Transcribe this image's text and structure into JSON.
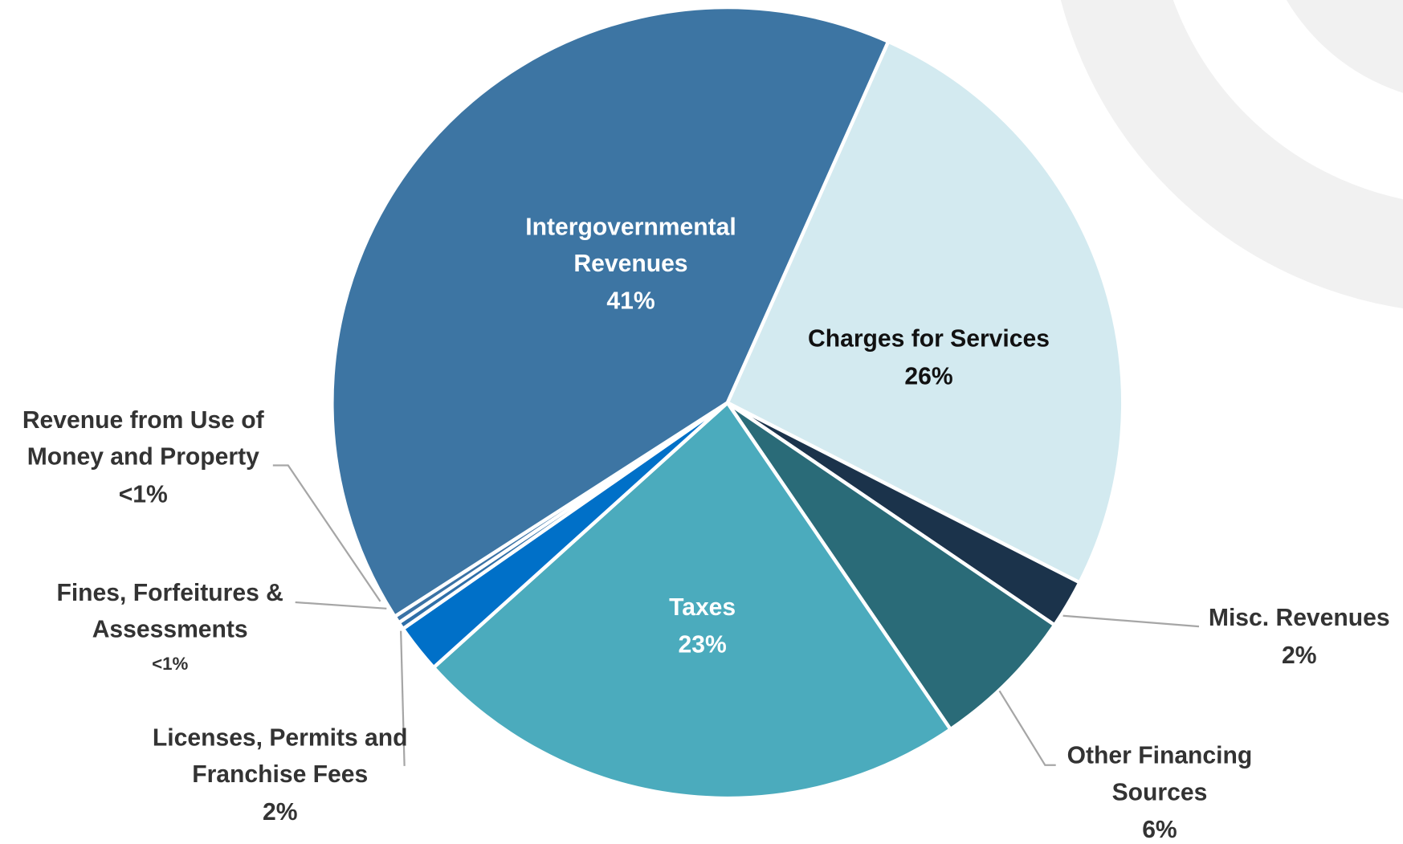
{
  "chart_data": {
    "type": "pie",
    "categories": [
      "Charges for Services",
      "Misc. Revenues",
      "Other Financing Sources",
      "Taxes",
      "Licenses, Permits and Franchise Fees",
      "Fines, Forfeitures & Assessments",
      "Revenue from Use of Money and Property",
      "Intergovernmental Revenues"
    ],
    "values": [
      26,
      2,
      6,
      23,
      2,
      0.3,
      0.3,
      41
    ],
    "value_labels": [
      "26%",
      "2%",
      "6%",
      "23%",
      "2%",
      "<1%",
      "<1%",
      "41%"
    ],
    "colors": [
      "#d3eaf0",
      "#1b334b",
      "#2a6b78",
      "#4babbd",
      "#0070c8",
      "#2f6fa8",
      "#3a72a5",
      "#3d75a3"
    ]
  }
}
